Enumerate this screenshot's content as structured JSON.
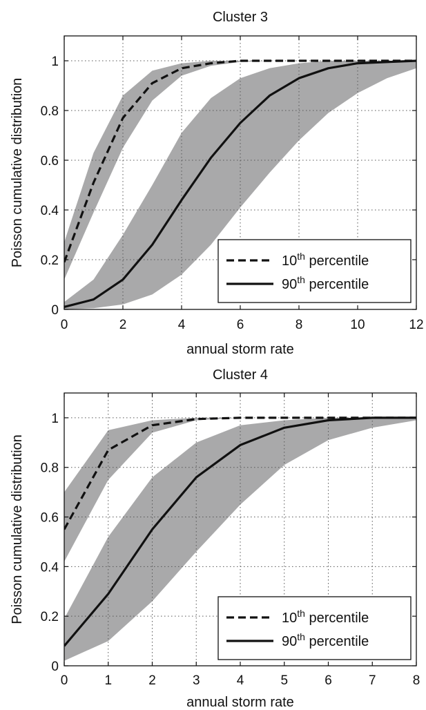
{
  "chart_data": [
    {
      "type": "line",
      "title": "Cluster 3",
      "xlabel": "annual storm rate",
      "ylabel": "Poisson cumulative distribution",
      "xlim": [
        0,
        12
      ],
      "ylim": [
        0,
        1.1
      ],
      "x_ticks": [
        0,
        2,
        4,
        6,
        8,
        10,
        12
      ],
      "y_ticks": [
        0,
        0.2,
        0.4,
        0.6,
        0.8,
        1
      ],
      "grid": true,
      "legend_position": "bottom-right",
      "x": [
        0,
        1,
        2,
        3,
        4,
        5,
        6,
        7,
        8,
        9,
        10,
        11,
        12
      ],
      "series": [
        {
          "name": "10th percentile",
          "style": "dashed",
          "values": [
            0.19,
            0.51,
            0.77,
            0.91,
            0.97,
            0.99,
            1.0,
            1.0,
            1.0,
            1.0,
            1.0,
            1.0,
            1.0
          ],
          "band_lower": [
            0.12,
            0.39,
            0.65,
            0.84,
            0.94,
            0.98,
            0.995,
            1.0,
            1.0,
            1.0,
            1.0,
            1.0,
            1.0
          ],
          "band_upper": [
            0.27,
            0.63,
            0.86,
            0.96,
            0.99,
            1.0,
            1.0,
            1.0,
            1.0,
            1.0,
            1.0,
            1.0,
            1.0
          ]
        },
        {
          "name": "90th percentile",
          "style": "solid",
          "values": [
            0.01,
            0.04,
            0.12,
            0.26,
            0.44,
            0.61,
            0.75,
            0.86,
            0.93,
            0.97,
            0.99,
            0.995,
            1.0
          ],
          "band_lower": [
            0.0,
            0.005,
            0.02,
            0.06,
            0.14,
            0.26,
            0.41,
            0.55,
            0.68,
            0.79,
            0.87,
            0.93,
            0.97
          ],
          "band_upper": [
            0.03,
            0.12,
            0.3,
            0.5,
            0.71,
            0.85,
            0.93,
            0.97,
            0.99,
            1.0,
            1.0,
            1.0,
            1.0
          ]
        }
      ],
      "legend": [
        {
          "base": "10",
          "sup": "th",
          "rest": " percentile"
        },
        {
          "base": "90",
          "sup": "th",
          "rest": " percentile"
        }
      ]
    },
    {
      "type": "line",
      "title": "Cluster 4",
      "xlabel": "annual storm rate",
      "ylabel": "Poisson cumulative distribution",
      "xlim": [
        0,
        8
      ],
      "ylim": [
        0,
        1.1
      ],
      "x_ticks": [
        0,
        1,
        2,
        3,
        4,
        5,
        6,
        7,
        8
      ],
      "y_ticks": [
        0,
        0.2,
        0.4,
        0.6,
        0.8,
        1
      ],
      "grid": true,
      "legend_position": "bottom-right",
      "x": [
        0,
        1,
        2,
        3,
        4,
        5,
        6,
        7,
        8
      ],
      "series": [
        {
          "name": "10th percentile",
          "style": "dashed",
          "values": [
            0.55,
            0.87,
            0.97,
            0.995,
            1.0,
            1.0,
            1.0,
            1.0,
            1.0
          ],
          "band_lower": [
            0.42,
            0.75,
            0.94,
            0.99,
            1.0,
            1.0,
            1.0,
            1.0,
            1.0
          ],
          "band_upper": [
            0.7,
            0.95,
            0.99,
            1.0,
            1.0,
            1.0,
            1.0,
            1.0,
            1.0
          ]
        },
        {
          "name": "90th percentile",
          "style": "solid",
          "values": [
            0.08,
            0.29,
            0.55,
            0.76,
            0.89,
            0.96,
            0.99,
            1.0,
            1.0
          ],
          "band_lower": [
            0.02,
            0.1,
            0.26,
            0.46,
            0.65,
            0.81,
            0.91,
            0.96,
            0.99
          ],
          "band_upper": [
            0.19,
            0.52,
            0.76,
            0.9,
            0.97,
            0.99,
            1.0,
            1.0,
            1.0
          ]
        }
      ],
      "legend": [
        {
          "base": "10",
          "sup": "th",
          "rest": " percentile"
        },
        {
          "base": "90",
          "sup": "th",
          "rest": " percentile"
        }
      ]
    }
  ],
  "colors": {
    "band": "#a9a9aa",
    "line": "#111111",
    "grid": "#555555",
    "background": "#ffffff"
  }
}
